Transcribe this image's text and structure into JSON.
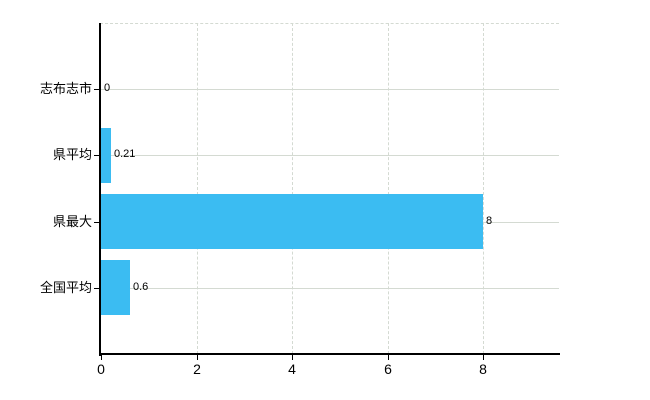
{
  "chart_data": {
    "type": "bar",
    "orientation": "horizontal",
    "title": "",
    "xlabel": "",
    "ylabel": "",
    "categories": [
      "志布志市",
      "県平均",
      "県最大",
      "全国平均"
    ],
    "values": [
      0,
      0.21,
      8,
      0.6
    ],
    "value_labels": [
      "0",
      "0.21",
      "8",
      "0.6"
    ],
    "x_ticks": [
      0,
      2,
      4,
      6,
      8
    ],
    "x_tick_labels": [
      "0",
      "2",
      "4",
      "6",
      "8"
    ],
    "xlim": [
      0,
      9.6
    ],
    "grid": true,
    "legend": false,
    "colors": {
      "bar": "#3bbcf2",
      "gridline": "#d4dad2",
      "axis": "#000000",
      "text": "#000000",
      "background": "#ffffff"
    }
  }
}
